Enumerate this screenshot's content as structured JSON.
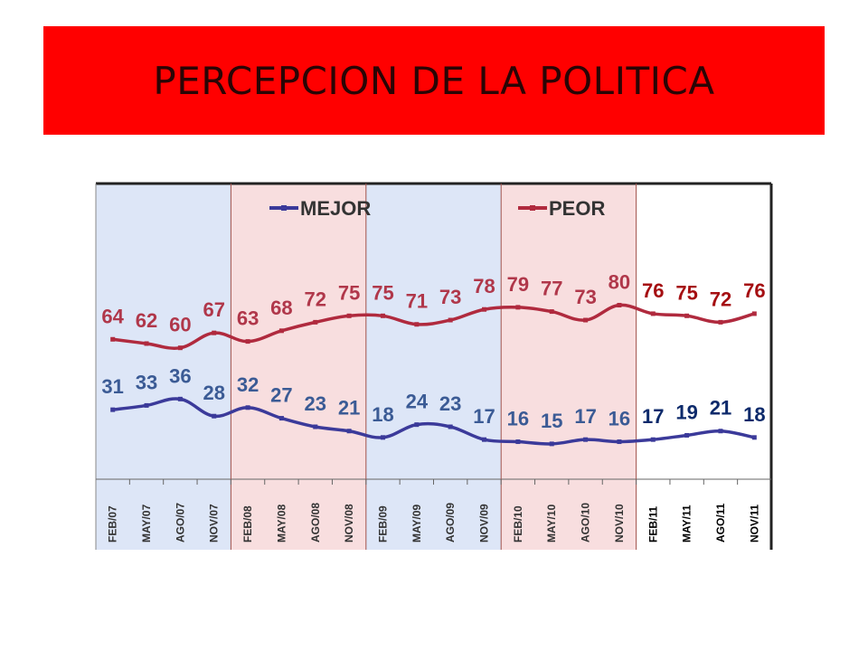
{
  "title": "PERCEPCION DE LA POLITICA",
  "chart_data": {
    "type": "line",
    "categories": [
      "FEB/07",
      "MAY/07",
      "AGO/07",
      "NOV/07",
      "FEB/08",
      "MAY/08",
      "AGO/08",
      "NOV/08",
      "FEB/09",
      "MAY/09",
      "AGO/09",
      "NOV/09",
      "FEB/10",
      "MAY/10",
      "AGO/10",
      "NOV/10",
      "FEB/11",
      "MAY/11",
      "AGO/11",
      "NOV/11"
    ],
    "series": [
      {
        "name": "MEJOR",
        "values": [
          31,
          33,
          36,
          28,
          32,
          27,
          23,
          21,
          18,
          24,
          23,
          17,
          16,
          15,
          17,
          16,
          17,
          19,
          21,
          18
        ],
        "color": "#3b3a9a",
        "label_color_past": "#3b5b95",
        "label_color_current": "#0d2a6b"
      },
      {
        "name": "PEOR",
        "values": [
          64,
          62,
          60,
          67,
          63,
          68,
          72,
          75,
          75,
          71,
          73,
          78,
          79,
          77,
          73,
          80,
          76,
          75,
          72,
          76
        ],
        "color": "#b02a3e",
        "label_color_past": "#b0374a",
        "label_color_current": "#a50f12"
      }
    ],
    "legend": "top",
    "background_bands": [
      {
        "from": "FEB/07",
        "to": "NOV/07",
        "color": "#dde6f7"
      },
      {
        "from": "FEB/08",
        "to": "NOV/08",
        "color": "#f8dedf"
      },
      {
        "from": "FEB/09",
        "to": "NOV/09",
        "color": "#dde6f7"
      },
      {
        "from": "FEB/10",
        "to": "NOV/10",
        "color": "#f8dedf"
      },
      {
        "from": "FEB/11",
        "to": "NOV/11",
        "color": "#ffffff"
      }
    ],
    "grid": false
  }
}
